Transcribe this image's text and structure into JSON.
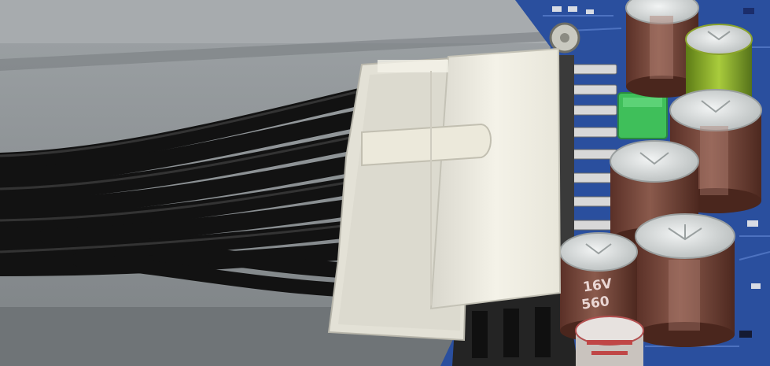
{
  "scene": {
    "subject": "",
    "colors": {
      "background_metal": "#8e9396",
      "wire": "#141414",
      "connector_latch": "#e6e4da",
      "connector_body": "#f2f0e4",
      "pcb": "#2a4f9e",
      "capacitor": "#7a4a3d",
      "capacitor_top": "#d9dcdc",
      "capacitor_green": "#9ec234",
      "inductor_green": "#3fbf5a",
      "pins": "#d8d8d8"
    }
  },
  "capacitor_markings": {
    "voltage": "16V",
    "capacitance": "560"
  }
}
